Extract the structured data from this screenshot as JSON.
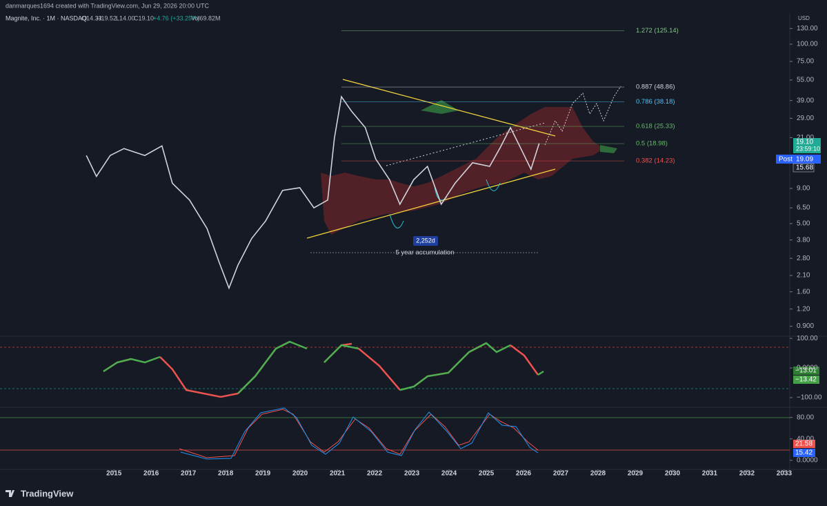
{
  "header": {
    "credit": "danmarques1694 created with TradingView.com, Jun 29, 2026 20:00 UTC",
    "symbol": "Magnite, Inc. · 1M · NASDAQ",
    "ohlc": [
      "O14.33",
      "H19.52",
      "L14.00",
      "C19.10",
      "+4.76 (+33.25%)",
      "Vol69.82M"
    ]
  },
  "chart_data": {
    "type": "line",
    "color": "#d1d4dc",
    "x": [
      2014.26,
      2014.53,
      2014.9,
      2015.27,
      2015.83,
      2016.29,
      2016.57,
      2017.03,
      2017.5,
      2017.83,
      2018.09,
      2018.33,
      2018.7,
      2019.07,
      2019.53,
      2019.99,
      2020.37,
      2020.74,
      2020.92,
      2021.11,
      2021.38,
      2021.75,
      2022.03,
      2022.4,
      2022.68,
      2023.05,
      2023.42,
      2023.79,
      2024.16,
      2024.63,
      2025.09,
      2025.37,
      2025.65,
      2025.92,
      2026.2,
      2026.42
    ],
    "values": [
      15.6,
      11,
      15.6,
      17.5,
      15.6,
      18.3,
      9.8,
      7.4,
      4.6,
      2.6,
      1.7,
      2.5,
      3.9,
      5.2,
      8.7,
      9.1,
      6.5,
      7.4,
      20.8,
      41.6,
      32.7,
      24.8,
      14.7,
      10.4,
      6.9,
      10.4,
      13,
      6.9,
      9.8,
      13.8,
      13,
      17.7,
      24.8,
      17.7,
      12.4,
      19.1
    ],
    "xlim": [
      2011.94,
      2033.15
    ],
    "xticks": [
      2015,
      2016,
      2017,
      2018,
      2019,
      2020,
      2021,
      2022,
      2023,
      2024,
      2025,
      2026,
      2027,
      2028,
      2029,
      2030,
      2031,
      2032,
      2033
    ],
    "ylim": [
      0.78,
      148
    ],
    "log": true,
    "axis_unit": "USD",
    "yticks": [
      {
        "value": 130,
        "label": "130.00"
      },
      {
        "value": 100,
        "label": "100.00"
      },
      {
        "value": 75,
        "label": "75.00"
      },
      {
        "value": 55,
        "label": "55.00"
      },
      {
        "value": 39,
        "label": "39.00"
      },
      {
        "value": 29,
        "label": "29.00"
      },
      {
        "value": 21,
        "label": "21.00"
      },
      {
        "value": 9,
        "label": "9.00"
      },
      {
        "value": 6.5,
        "label": "6.50"
      },
      {
        "value": 5,
        "label": "5.00"
      },
      {
        "value": 3.8,
        "label": "3.80"
      },
      {
        "value": 2.8,
        "label": "2.80"
      },
      {
        "value": 2.1,
        "label": "2.10"
      },
      {
        "value": 1.6,
        "label": "1.60"
      },
      {
        "value": 1.2,
        "label": "1.20"
      },
      {
        "value": 0.9,
        "label": "0.900"
      }
    ],
    "fib_levels": [
      {
        "value": 125.14,
        "label": "1.272 (125.14)",
        "color": "#81c784"
      },
      {
        "value": 48.86,
        "label": "0.887 (48.86)",
        "color": "#d1d4dc"
      },
      {
        "value": 38.18,
        "label": "0.786 (38.18)",
        "color": "#4fc3f7"
      },
      {
        "value": 25.33,
        "label": "0.618 (25.33)",
        "color": "#66bb6a"
      },
      {
        "value": 18.98,
        "label": "0.5 (18.98)",
        "color": "#66bb6a"
      },
      {
        "value": 14.23,
        "label": "0.382 (14.23)",
        "color": "#ef5350"
      }
    ],
    "annotations": {
      "duration": "2,252d",
      "note": "5 year accumulation"
    },
    "badges": {
      "price": "19.10",
      "countdown": "23:59:10",
      "post": "Post",
      "post_price": "19.09",
      "ma": "15.68"
    }
  },
  "indicators": [
    {
      "ylim": [
        -128,
        105
      ],
      "yticks": [
        {
          "value": 100,
          "label": "100.00"
        },
        {
          "value": 0,
          "label": "0.0000"
        },
        {
          "value": -100,
          "label": "−100.00"
        }
      ],
      "badges": [
        "−13.01",
        "−13.42"
      ]
    },
    {
      "ylim": [
        -17,
        99
      ],
      "yticks": [
        {
          "value": 80,
          "label": "80.00"
        },
        {
          "value": 40,
          "label": "40.00"
        },
        {
          "value": 0,
          "label": "0.0000"
        }
      ],
      "badges": [
        "21.58",
        "15.42"
      ]
    }
  ],
  "footer": {
    "logo": "TradingView"
  }
}
